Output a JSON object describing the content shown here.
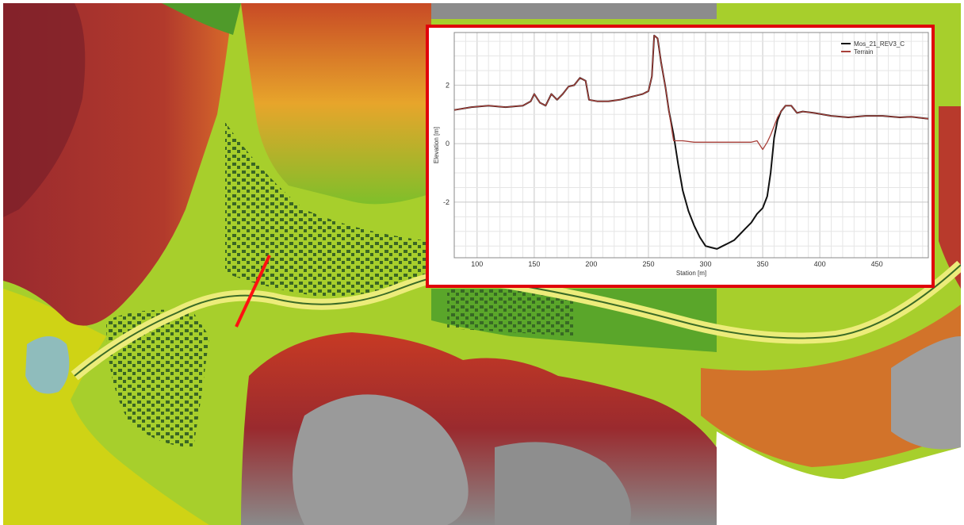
{
  "map": {
    "colors": {
      "sea": "#cfd315",
      "lagoon": "#8fbcbc",
      "lowland": "#9fcd2b",
      "green": "#4f9a2a",
      "orange": "#e08a2a",
      "red": "#a8262b",
      "gray": "#8c8c8c",
      "section_line": "#ff1111"
    }
  },
  "chart_data": {
    "type": "line",
    "title": "",
    "xlabel": "Station [m]",
    "ylabel": "Elevation [m]",
    "xlim": [
      80,
      495
    ],
    "ylim": [
      -3.9,
      3.8
    ],
    "xticks": [
      100,
      150,
      200,
      250,
      300,
      350,
      400,
      450
    ],
    "yticks": [
      -2,
      0,
      2
    ],
    "grid": true,
    "legend_position": "top-right",
    "series": [
      {
        "name": "Mos_21_REV3_C",
        "color": "#111111",
        "x": [
          80,
          95,
          110,
          125,
          140,
          147,
          150,
          155,
          160,
          165,
          170,
          175,
          180,
          185,
          190,
          195,
          198,
          205,
          215,
          225,
          235,
          240,
          245,
          250,
          253,
          255,
          258,
          261,
          265,
          268,
          272,
          276,
          280,
          285,
          290,
          295,
          300,
          305,
          310,
          315,
          320,
          325,
          330,
          335,
          340,
          345,
          350,
          354,
          357,
          360,
          363,
          366,
          370,
          375,
          380,
          385,
          395,
          410,
          425,
          440,
          455,
          470,
          480,
          495
        ],
        "y": [
          1.15,
          1.25,
          1.3,
          1.25,
          1.3,
          1.45,
          1.7,
          1.4,
          1.3,
          1.7,
          1.5,
          1.7,
          1.95,
          2.0,
          2.25,
          2.15,
          1.5,
          1.45,
          1.45,
          1.5,
          1.6,
          1.65,
          1.7,
          1.8,
          2.3,
          3.7,
          3.6,
          2.8,
          1.9,
          1.1,
          0.3,
          -0.7,
          -1.6,
          -2.3,
          -2.8,
          -3.2,
          -3.5,
          -3.55,
          -3.6,
          -3.5,
          -3.4,
          -3.3,
          -3.1,
          -2.9,
          -2.7,
          -2.4,
          -2.2,
          -1.8,
          -1.0,
          0.2,
          0.8,
          1.1,
          1.3,
          1.3,
          1.05,
          1.1,
          1.05,
          0.95,
          0.9,
          0.95,
          0.95,
          0.9,
          0.92,
          0.85
        ]
      },
      {
        "name": "Terrain",
        "color": "#a8403a",
        "x": [
          80,
          95,
          110,
          125,
          140,
          147,
          150,
          155,
          160,
          165,
          170,
          175,
          180,
          185,
          190,
          195,
          198,
          205,
          215,
          225,
          235,
          240,
          245,
          250,
          253,
          255,
          258,
          261,
          265,
          268,
          272,
          280,
          290,
          300,
          310,
          320,
          330,
          340,
          345,
          350,
          354,
          357,
          360,
          363,
          366,
          370,
          375,
          380,
          385,
          395,
          410,
          425,
          440,
          455,
          470,
          480,
          495
        ],
        "y": [
          1.15,
          1.25,
          1.3,
          1.25,
          1.3,
          1.45,
          1.7,
          1.4,
          1.3,
          1.7,
          1.5,
          1.7,
          1.95,
          2.0,
          2.25,
          2.15,
          1.5,
          1.45,
          1.45,
          1.5,
          1.6,
          1.65,
          1.7,
          1.8,
          2.3,
          3.7,
          3.6,
          2.8,
          1.9,
          1.1,
          0.1,
          0.1,
          0.05,
          0.05,
          0.05,
          0.05,
          0.05,
          0.05,
          0.1,
          -0.2,
          0.05,
          0.3,
          0.6,
          0.9,
          1.1,
          1.3,
          1.3,
          1.05,
          1.1,
          1.05,
          0.95,
          0.9,
          0.95,
          0.95,
          0.9,
          0.92,
          0.85
        ]
      }
    ]
  }
}
